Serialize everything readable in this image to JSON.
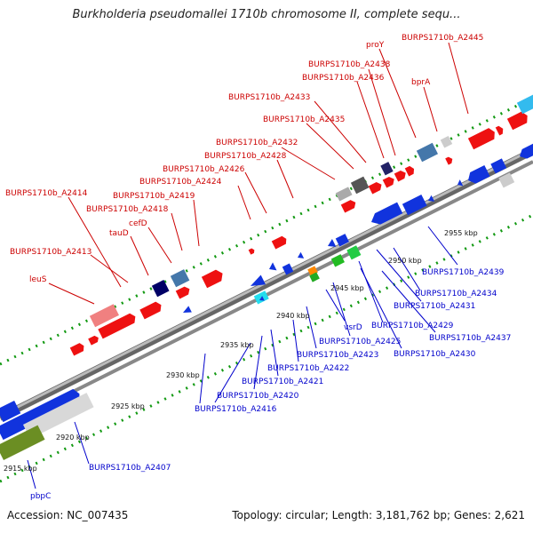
{
  "title": "Burkholderia pseudomallei 1710b chromosome II, complete sequ...",
  "footer": {
    "accession": "Accession: NC_007435",
    "summary": "Topology: circular; Length: 3,181,762 bp; Genes: 2,621"
  },
  "colors": {
    "forward_label": "#cc0000",
    "reverse_label": "#0000cc",
    "forward_gene": "#ee1111",
    "reverse_gene": "#1133dd",
    "backbone": "#888888",
    "tick_green": "#119911"
  },
  "ticks": [
    "2915 kbp",
    "2920 kbp",
    "2925 kbp",
    "2930 kbp",
    "2935 kbp",
    "2940 kbp",
    "2945 kbp",
    "2950 kbp",
    "2955 kbp"
  ],
  "forward_labels": [
    "BURPS1710b_A2445",
    "proY",
    "BURPS1710b_A2438",
    "BURPS1710b_A2436",
    "bprA",
    "BURPS1710b_A2433",
    "BURPS1710b_A2435",
    "BURPS1710b_A2432",
    "BURPS1710b_A2428",
    "BURPS1710b_A2426",
    "BURPS1710b_A2424",
    "BURPS1710b_A2414",
    "BURPS1710b_A2419",
    "BURPS1710b_A2418",
    "cefD",
    "tauD",
    "BURPS1710b_A2413",
    "leuS"
  ],
  "reverse_labels": [
    "BURPS1710b_A2439",
    "BURPS1710b_A2434",
    "BURPS1710b_A2431",
    "vsrD",
    "BURPS1710b_A2429",
    "BURPS1710b_A2437",
    "BURPS1710b_A2425",
    "BURPS1710b_A2430",
    "BURPS1710b_A2423",
    "BURPS1710b_A2422",
    "BURPS1710b_A2421",
    "BURPS1710b_A2420",
    "BURPS1710b_A2416",
    "BURPS1710b_A2407",
    "pbpC"
  ]
}
